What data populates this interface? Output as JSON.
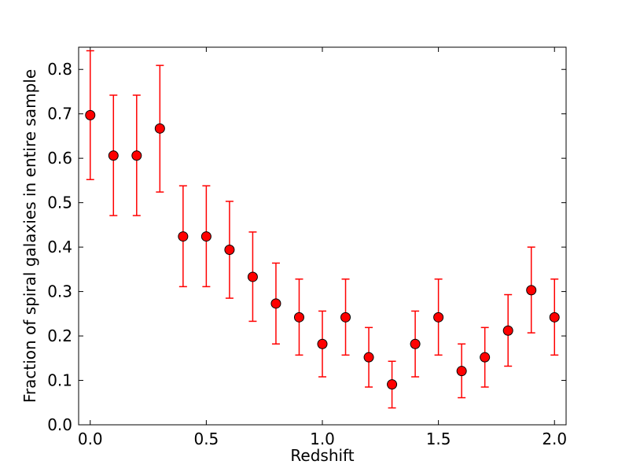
{
  "chart_data": {
    "type": "scatter",
    "title": "",
    "xlabel": "Redshift",
    "ylabel": "Fraction of spiral galaxies in entire sample",
    "xlim": [
      -0.05,
      2.05
    ],
    "ylim": [
      0.0,
      0.85
    ],
    "xticks": [
      0.0,
      0.5,
      1.0,
      1.5,
      2.0
    ],
    "xtick_labels": [
      "0.0",
      "0.5",
      "1.0",
      "1.5",
      "2.0"
    ],
    "yticks": [
      0.0,
      0.1,
      0.2,
      0.3,
      0.4,
      0.5,
      0.6,
      0.7,
      0.8
    ],
    "ytick_labels": [
      "0.0",
      "0.1",
      "0.2",
      "0.3",
      "0.4",
      "0.5",
      "0.6",
      "0.7",
      "0.8"
    ],
    "grid": false,
    "marker_color": "#ff0000",
    "errorbar_color": "#ff0000",
    "series": [
      {
        "x": [
          0.0,
          0.1,
          0.2,
          0.3,
          0.4,
          0.5,
          0.6,
          0.7,
          0.8,
          0.9,
          1.0,
          1.1,
          1.2,
          1.3,
          1.4,
          1.5,
          1.6,
          1.7,
          1.8,
          1.9,
          2.0
        ],
        "y": [
          0.697,
          0.606,
          0.606,
          0.667,
          0.424,
          0.424,
          0.394,
          0.333,
          0.273,
          0.242,
          0.182,
          0.242,
          0.152,
          0.091,
          0.182,
          0.242,
          0.121,
          0.152,
          0.212,
          0.303,
          0.242
        ],
        "ylow": [
          0.552,
          0.471,
          0.471,
          0.524,
          0.311,
          0.311,
          0.285,
          0.233,
          0.182,
          0.157,
          0.108,
          0.157,
          0.085,
          0.038,
          0.108,
          0.157,
          0.061,
          0.085,
          0.132,
          0.207,
          0.157
        ],
        "yhigh": [
          0.842,
          0.742,
          0.742,
          0.809,
          0.538,
          0.538,
          0.503,
          0.434,
          0.364,
          0.328,
          0.256,
          0.328,
          0.219,
          0.143,
          0.256,
          0.328,
          0.182,
          0.219,
          0.293,
          0.4,
          0.328
        ]
      }
    ]
  }
}
